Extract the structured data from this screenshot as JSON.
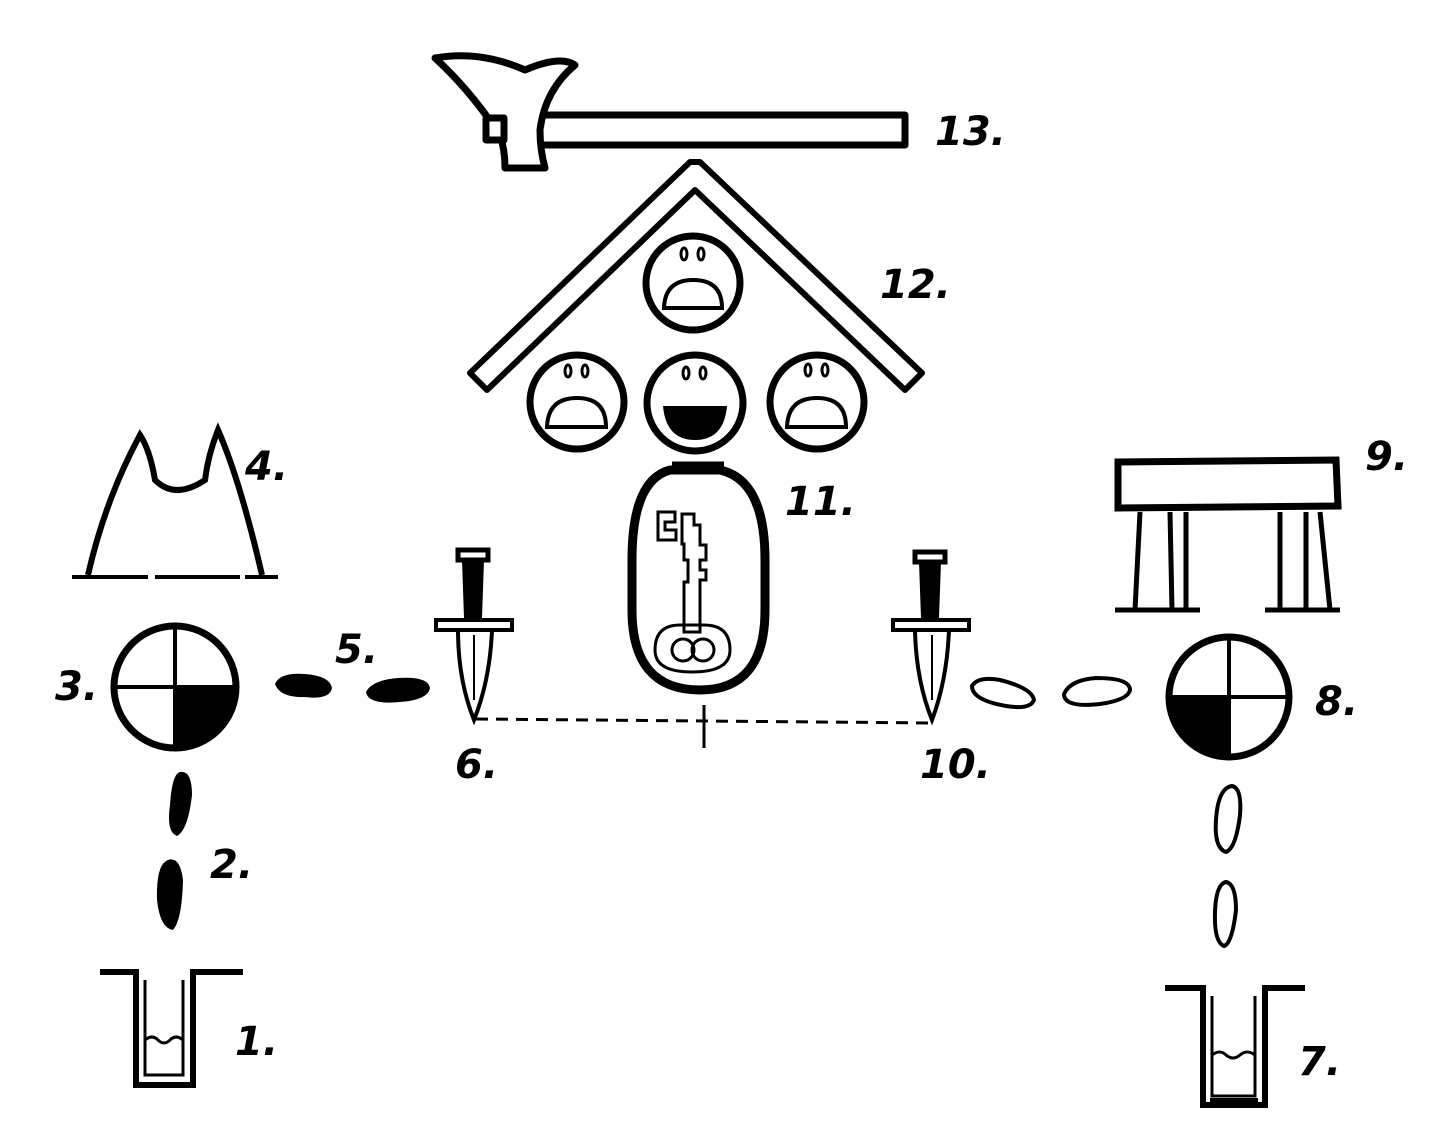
{
  "labels": {
    "n1": "1.",
    "n2": "2.",
    "n3": "3.",
    "n4": "4.",
    "n5": "5.",
    "n6": "6.",
    "n7": "7.",
    "n8": "8.",
    "n9": "9.",
    "n10": "10.",
    "n11": "11.",
    "n12": "12.",
    "n13": "13."
  },
  "colors": {
    "ink": "#000000",
    "paper": "#ffffff"
  }
}
